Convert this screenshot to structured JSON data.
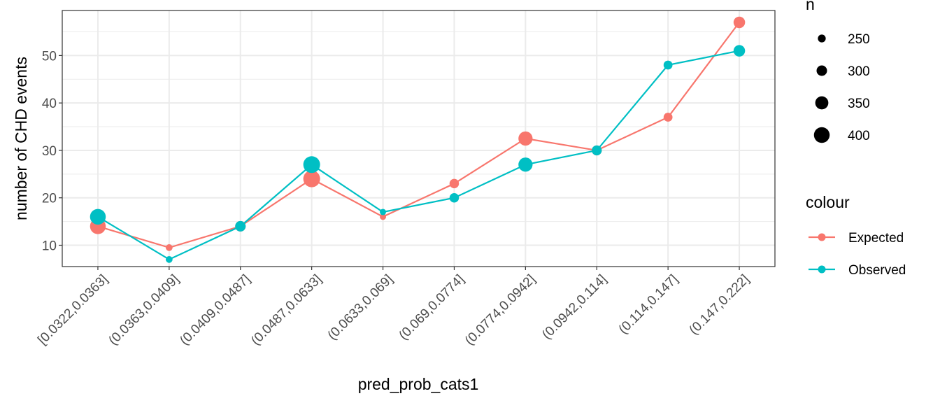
{
  "chart_data": {
    "type": "line",
    "xlabel": "pred_prob_cats1",
    "ylabel": "number of CHD events",
    "ylim": [
      5.5,
      59.5
    ],
    "yticks": [
      10,
      20,
      30,
      40,
      50
    ],
    "grid": true,
    "categories": [
      "[0.0322,0.0363]",
      "(0.0363,0.0409]",
      "(0.0409,0.0487]",
      "(0.0487,0.0633]",
      "(0.0633,0.069]",
      "(0.069,0.0774]",
      "(0.0774,0.0942]",
      "(0.0942,0.114]",
      "(0.114,0.147]",
      "(0.147,0.222]"
    ],
    "n": [
      400,
      230,
      300,
      420,
      220,
      280,
      370,
      290,
      270,
      320
    ],
    "series": [
      {
        "name": "Expected",
        "color": "#F8766D",
        "values": [
          14,
          9.5,
          14,
          24,
          16,
          23,
          32.5,
          30,
          37,
          57
        ]
      },
      {
        "name": "Observed",
        "color": "#00BFC4",
        "values": [
          16,
          7,
          14,
          27,
          17,
          20,
          27,
          30,
          48,
          51
        ]
      }
    ],
    "legend_size": {
      "title": "n",
      "values": [
        250,
        300,
        350,
        400
      ],
      "labels": [
        "250",
        "300",
        "350",
        "400"
      ]
    },
    "legend_colour": {
      "title": "colour",
      "placement": "right"
    }
  }
}
